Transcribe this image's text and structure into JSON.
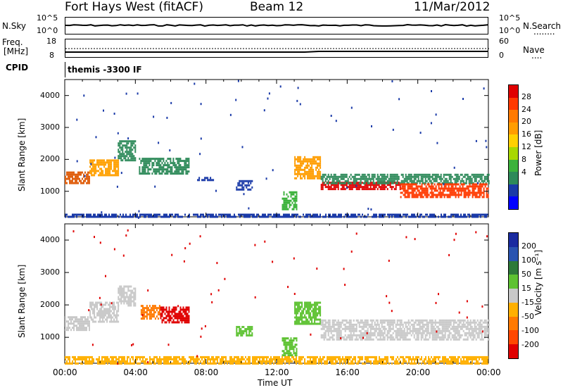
{
  "header": {
    "radar": "Fort Hays West (fitACF)",
    "beam": "Beam 12",
    "date": "11/Mar/2012"
  },
  "nsky_panel": {
    "left_label": "N.Sky",
    "left_ticks": [
      "10^5",
      "10^0"
    ],
    "right_ticks": [
      "10^5",
      "10^0"
    ],
    "right_label": "N.Search",
    "right_legend": "........"
  },
  "freq_panel": {
    "left_label_1": "Freq.",
    "left_label_2": "[MHz]",
    "left_ticks": [
      "18",
      "8"
    ],
    "right_ticks": [
      "60",
      "0"
    ],
    "right_label": "Nave",
    "right_legend": "...."
  },
  "cpid_panel": {
    "left_label": "CPID",
    "value": "themis -3300 IF"
  },
  "power_colorbar": {
    "title": "Power [dB]",
    "ticks": [
      "28",
      "24",
      "20",
      "16",
      "12",
      "8",
      "4"
    ],
    "colors": [
      "#e00000",
      "#ff3a00",
      "#ff7a00",
      "#ff9d00",
      "#ffd000",
      "#a8d800",
      "#3cb23c",
      "#2e8a5a",
      "#1a3aa8",
      "#0000ff"
    ]
  },
  "velocity_colorbar": {
    "title": "Velocity [m s⁻¹]",
    "ticks": [
      "200",
      "100",
      "50",
      "15",
      "-15",
      "-50",
      "-100",
      "-200"
    ],
    "colors": [
      "#1a2ba0",
      "#2a54b0",
      "#2e7a3a",
      "#5ec232",
      "#c8c8c8",
      "#ffb000",
      "#ff7a00",
      "#ff4800",
      "#e00000"
    ]
  },
  "chart_data": [
    {
      "type": "heatmap",
      "name": "power",
      "ylabel": "Slant Range [km]",
      "yticks": [
        1000,
        2000,
        3000,
        4000
      ],
      "ylim": [
        200,
        4500
      ],
      "xlim": [
        0,
        24
      ],
      "xticks": [
        "00:00",
        "04:00",
        "08:00",
        "12:00",
        "16:00",
        "20:00",
        "00:00"
      ],
      "bands": [
        {
          "t0": 0.0,
          "t1": 1.4,
          "r0": 1280,
          "r1": 1620,
          "color": "#e06010"
        },
        {
          "t0": 1.4,
          "t1": 3.0,
          "r0": 1500,
          "r1": 2000,
          "color": "#ffa000"
        },
        {
          "t0": 3.0,
          "t1": 4.0,
          "r0": 2000,
          "r1": 2600,
          "color": "#2e8a5a"
        },
        {
          "t0": 4.2,
          "t1": 7.0,
          "r0": 1550,
          "r1": 2050,
          "color": "#2e8a5a"
        },
        {
          "t0": 7.5,
          "t1": 8.5,
          "r0": 1350,
          "r1": 1450,
          "color": "#1a3aa8"
        },
        {
          "t0": 9.7,
          "t1": 10.6,
          "r0": 1050,
          "r1": 1350,
          "color": "#1a3aa8"
        },
        {
          "t0": 12.3,
          "t1": 13.1,
          "r0": 450,
          "r1": 1000,
          "color": "#3cb23c"
        },
        {
          "t0": 13.0,
          "t1": 14.5,
          "r0": 1400,
          "r1": 2100,
          "color": "#ff9d00"
        },
        {
          "t0": 14.5,
          "t1": 19.0,
          "r0": 1050,
          "r1": 1300,
          "color": "#e00000"
        },
        {
          "t0": 14.5,
          "t1": 24.0,
          "r0": 1250,
          "r1": 1550,
          "color": "#2e8a5a"
        },
        {
          "t0": 19.0,
          "t1": 24.0,
          "r0": 850,
          "r1": 1250,
          "color": "#ff3a00"
        },
        {
          "t0": 0.0,
          "t1": 24.0,
          "r0": 200,
          "r1": 300,
          "color": "#1a3aa8"
        }
      ]
    },
    {
      "type": "heatmap",
      "name": "velocity",
      "xlabel": "Time UT",
      "ylabel": "Slant Range [km]",
      "yticks": [
        1000,
        2000,
        3000,
        4000
      ],
      "ylim": [
        200,
        4500
      ],
      "xlim": [
        0,
        24
      ],
      "xticks": [
        "00:00",
        "04:00",
        "08:00",
        "12:00",
        "16:00",
        "20:00",
        "00:00"
      ],
      "bands": [
        {
          "t0": 0.0,
          "t1": 1.4,
          "r0": 1200,
          "r1": 1650,
          "color": "#c8c8c8"
        },
        {
          "t0": 1.4,
          "t1": 3.0,
          "r0": 1500,
          "r1": 2100,
          "color": "#c8c8c8"
        },
        {
          "t0": 3.0,
          "t1": 4.0,
          "r0": 2000,
          "r1": 2600,
          "color": "#c8c8c8"
        },
        {
          "t0": 4.3,
          "t1": 5.4,
          "r0": 1600,
          "r1": 2000,
          "color": "#ff7a00"
        },
        {
          "t0": 5.4,
          "t1": 7.0,
          "r0": 1450,
          "r1": 1950,
          "color": "#e00000"
        },
        {
          "t0": 9.7,
          "t1": 10.6,
          "r0": 1050,
          "r1": 1350,
          "color": "#5ec232"
        },
        {
          "t0": 12.3,
          "t1": 13.1,
          "r0": 450,
          "r1": 1000,
          "color": "#5ec232"
        },
        {
          "t0": 13.0,
          "t1": 14.5,
          "r0": 1400,
          "r1": 2100,
          "color": "#5ec232"
        },
        {
          "t0": 14.5,
          "t1": 24.0,
          "r0": 950,
          "r1": 1550,
          "color": "#c8c8c8"
        },
        {
          "t0": 0.0,
          "t1": 24.0,
          "r0": 200,
          "r1": 420,
          "color": "#ffb000"
        }
      ]
    }
  ]
}
